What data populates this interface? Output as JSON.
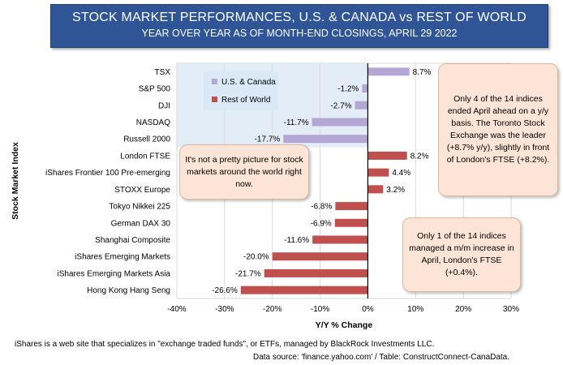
{
  "chart_data": {
    "type": "bar",
    "orientation": "horizontal",
    "title": "STOCK MARKET PERFORMANCES, U.S. & CANADA vs REST OF WORLD",
    "subtitle": "YEAR OVER YEAR AS OF MONTH-END CLOSINGS, APRIL 29 2022",
    "xlabel": "Y/Y % Change",
    "ylabel": "Stock Market Index",
    "xlim": [
      -40,
      30
    ],
    "xticks": [
      -40,
      -30,
      -20,
      -10,
      0,
      10,
      20,
      30
    ],
    "xtick_labels": [
      "-40%",
      "-30%",
      "-20%",
      "-10%",
      "0%",
      "10%",
      "20%",
      "30%"
    ],
    "grid": true,
    "legend_position": "top-left",
    "series": [
      {
        "name": "U.S. & Canada",
        "color": "#b4a7d6"
      },
      {
        "name": "Rest of World",
        "color": "#c0504d"
      }
    ],
    "bars": [
      {
        "category": "TSX",
        "value": 8.7,
        "label": "8.7%",
        "series": 0
      },
      {
        "category": "S&P 500",
        "value": -1.2,
        "label": "-1.2%",
        "series": 0
      },
      {
        "category": "DJI",
        "value": -2.7,
        "label": "-2.7%",
        "series": 0
      },
      {
        "category": "NASDAQ",
        "value": -11.7,
        "label": "-11.7%",
        "series": 0
      },
      {
        "category": "Russell  2000",
        "value": -17.7,
        "label": "-17.7%",
        "series": 0
      },
      {
        "category": "London FTSE",
        "value": 8.2,
        "label": "8.2%",
        "series": 1
      },
      {
        "category": "iShares Frontier 100 Pre-emerging",
        "value": 4.4,
        "label": "4.4%",
        "series": 1
      },
      {
        "category": "STOXX Europe",
        "value": 3.2,
        "label": "3.2%",
        "series": 1
      },
      {
        "category": "Tokyo Nikkei 225",
        "value": -6.8,
        "label": "-6.8%",
        "series": 1
      },
      {
        "category": "German DAX 30",
        "value": -6.9,
        "label": "-6.9%",
        "series": 1
      },
      {
        "category": "Shanghai Composite",
        "value": -11.6,
        "label": "-11.6%",
        "series": 1
      },
      {
        "category": "iShares Emerging Markets",
        "value": -20.0,
        "label": "-20.0%",
        "series": 1
      },
      {
        "category": "iShares Emerging Markets Asia",
        "value": -21.7,
        "label": "-21.7%",
        "series": 1
      },
      {
        "category": "Hong Kong Hang Seng",
        "value": -26.6,
        "label": "-26.6%",
        "series": 1
      }
    ]
  },
  "annotations": {
    "left": "It's not a pretty picture for stock markets around the world right now.",
    "top_right": "Only 4 of the 14 indices ended April ahead on a y/y basis. The Toronto Stock Exchange was the leader (+8.7% y/y), slightly in front of London's FTSE (+8.2%).",
    "bottom_right": "Only 1 of the 14 indices managed a m/m increase in April, London's FTSE (+0.4%)."
  },
  "footnotes": {
    "line1": "iShares is a web site that specializes in \"exchange traded funds\", or ETFs, managed by BlackRock Investments LLC.",
    "line2": "Data source: 'finance.yahoo.com' / Table: ConstructConnect-CanaData."
  }
}
